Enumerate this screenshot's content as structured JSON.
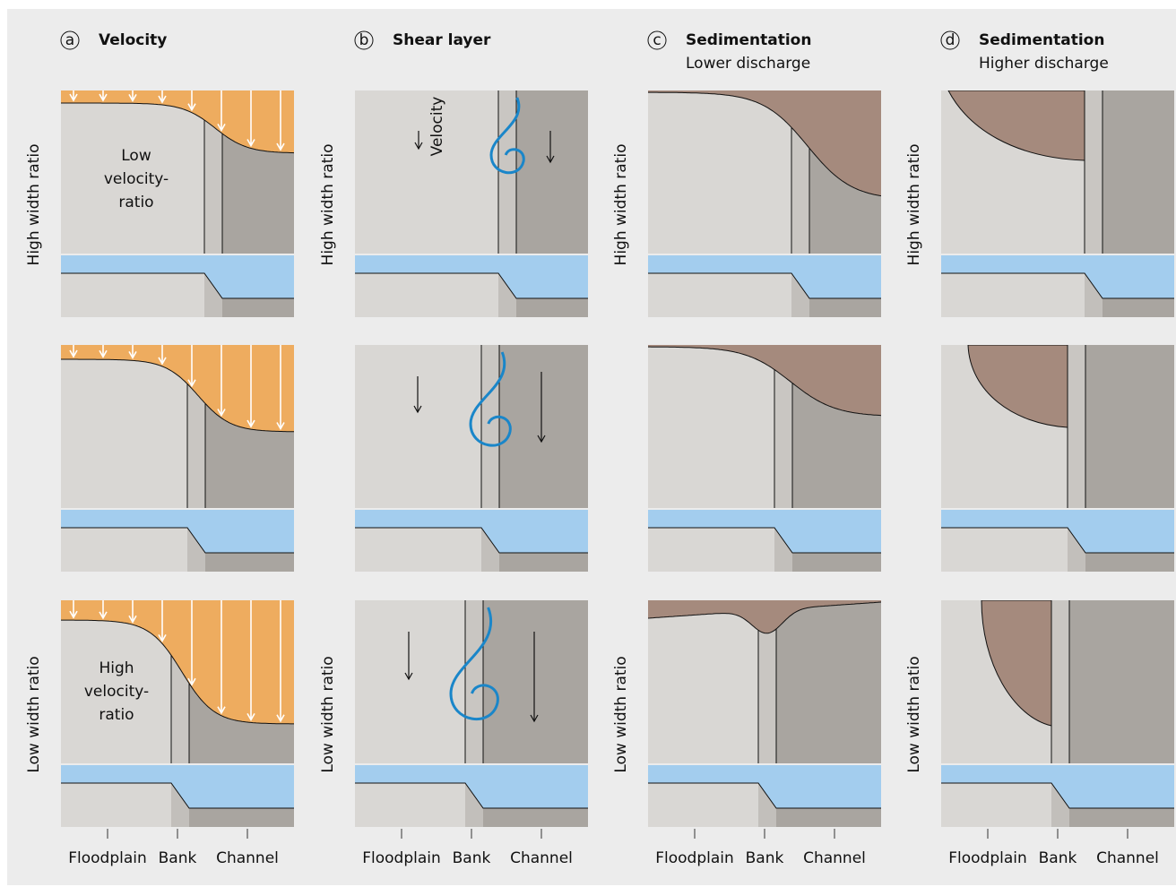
{
  "columns": [
    {
      "letter": "a",
      "title": "Velocity"
    },
    {
      "letter": "b",
      "title": "Shear layer"
    },
    {
      "letter": "c",
      "title": "Sedimentation",
      "subtitle": "Lower discharge"
    },
    {
      "letter": "d",
      "title": "Sedimentation",
      "subtitle": "Higher discharge"
    }
  ],
  "row_labels": [
    "High width ratio",
    "Low width ratio"
  ],
  "axis_labels": [
    "Floodplain",
    "Bank",
    "Channel"
  ],
  "panel_text": {
    "low_velocity_ratio": [
      "Low",
      "velocity-",
      "ratio"
    ],
    "high_velocity_ratio": [
      "High",
      "velocity-",
      "ratio"
    ],
    "velocity": "Velocity"
  }
}
